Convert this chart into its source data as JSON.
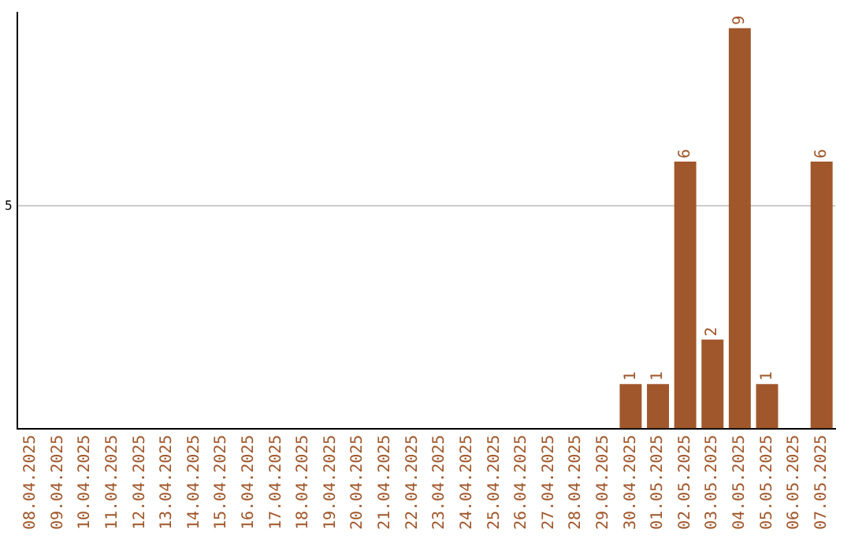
{
  "chart_data": {
    "type": "bar",
    "categories": [
      "08.04.2025",
      "09.04.2025",
      "10.04.2025",
      "11.04.2025",
      "12.04.2025",
      "13.04.2025",
      "14.04.2025",
      "15.04.2025",
      "16.04.2025",
      "17.04.2025",
      "18.04.2025",
      "19.04.2025",
      "20.04.2025",
      "21.04.2025",
      "22.04.2025",
      "23.04.2025",
      "24.04.2025",
      "25.04.2025",
      "26.04.2025",
      "27.04.2025",
      "28.04.2025",
      "29.04.2025",
      "30.04.2025",
      "01.05.2025",
      "02.05.2025",
      "03.05.2025",
      "04.05.2025",
      "05.05.2025",
      "06.05.2025",
      "07.05.2025"
    ],
    "values": [
      null,
      null,
      null,
      null,
      null,
      null,
      null,
      null,
      null,
      null,
      null,
      null,
      null,
      null,
      null,
      null,
      null,
      null,
      null,
      null,
      null,
      null,
      1,
      1,
      6,
      2,
      9,
      1,
      null,
      6
    ],
    "data_labels": true,
    "color": "#a0572b",
    "ylim": [
      0,
      9.35
    ],
    "yticks": [
      5
    ],
    "grid": "y"
  }
}
